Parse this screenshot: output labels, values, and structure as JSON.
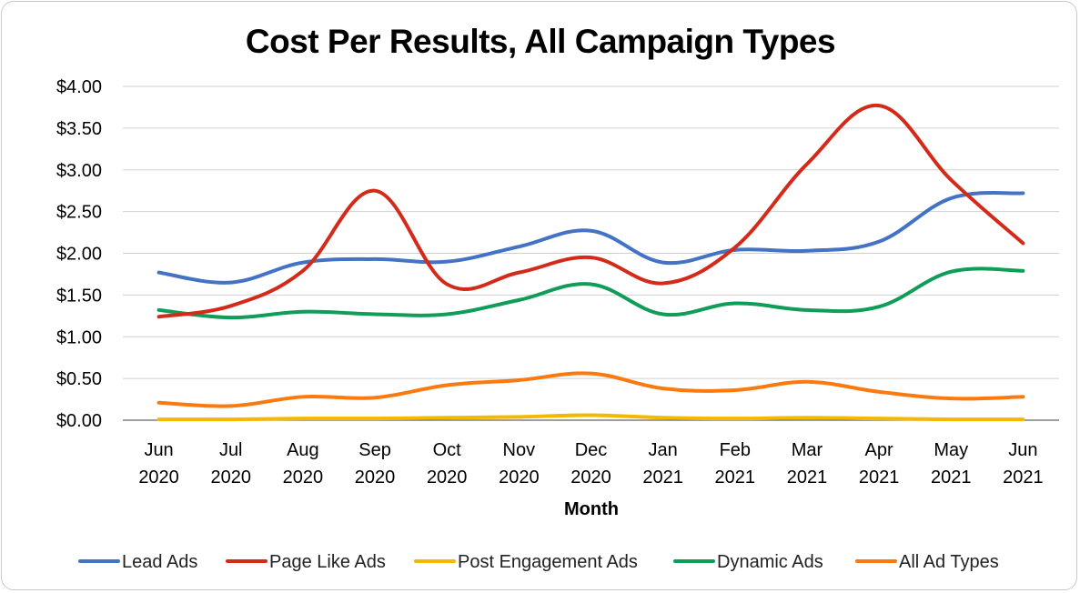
{
  "chart_data": {
    "type": "line",
    "title": "Cost Per Results, All Campaign Types",
    "xlabel": "Month",
    "ylabel": "",
    "ylim": [
      0,
      4
    ],
    "yticks": [
      "$0.00",
      "$0.50",
      "$1.00",
      "$1.50",
      "$2.00",
      "$2.50",
      "$3.00",
      "$3.50",
      "$4.00"
    ],
    "categories": [
      [
        "Jun",
        "2020"
      ],
      [
        "Jul",
        "2020"
      ],
      [
        "Aug",
        "2020"
      ],
      [
        "Sep",
        "2020"
      ],
      [
        "Oct",
        "2020"
      ],
      [
        "Nov",
        "2020"
      ],
      [
        "Dec",
        "2020"
      ],
      [
        "Jan",
        "2021"
      ],
      [
        "Feb",
        "2021"
      ],
      [
        "Mar",
        "2021"
      ],
      [
        "Apr",
        "2021"
      ],
      [
        "May",
        "2021"
      ],
      [
        "Jun",
        "2021"
      ]
    ],
    "grid": true,
    "legend_position": "bottom",
    "series": [
      {
        "name": "Lead Ads",
        "color": "#4472c4",
        "values": [
          1.77,
          1.65,
          1.89,
          1.93,
          1.9,
          2.08,
          2.27,
          1.89,
          2.04,
          2.03,
          2.14,
          2.66,
          2.72
        ]
      },
      {
        "name": "Page Like Ads",
        "color": "#d42a1a",
        "values": [
          1.24,
          1.37,
          1.79,
          2.75,
          1.63,
          1.77,
          1.95,
          1.64,
          2.07,
          3.07,
          3.77,
          2.88,
          2.12
        ]
      },
      {
        "name": "Post Engagement Ads",
        "color": "#f5b800",
        "values": [
          0.01,
          0.01,
          0.02,
          0.02,
          0.03,
          0.04,
          0.06,
          0.03,
          0.02,
          0.03,
          0.02,
          0.01,
          0.01
        ]
      },
      {
        "name": "Dynamic Ads",
        "color": "#0f9d58",
        "values": [
          1.32,
          1.23,
          1.3,
          1.27,
          1.27,
          1.44,
          1.63,
          1.27,
          1.4,
          1.32,
          1.36,
          1.78,
          1.79
        ]
      },
      {
        "name": "All Ad Types",
        "color": "#fa7a10",
        "values": [
          0.21,
          0.17,
          0.28,
          0.27,
          0.42,
          0.48,
          0.56,
          0.38,
          0.36,
          0.46,
          0.34,
          0.26,
          0.28
        ]
      }
    ]
  }
}
